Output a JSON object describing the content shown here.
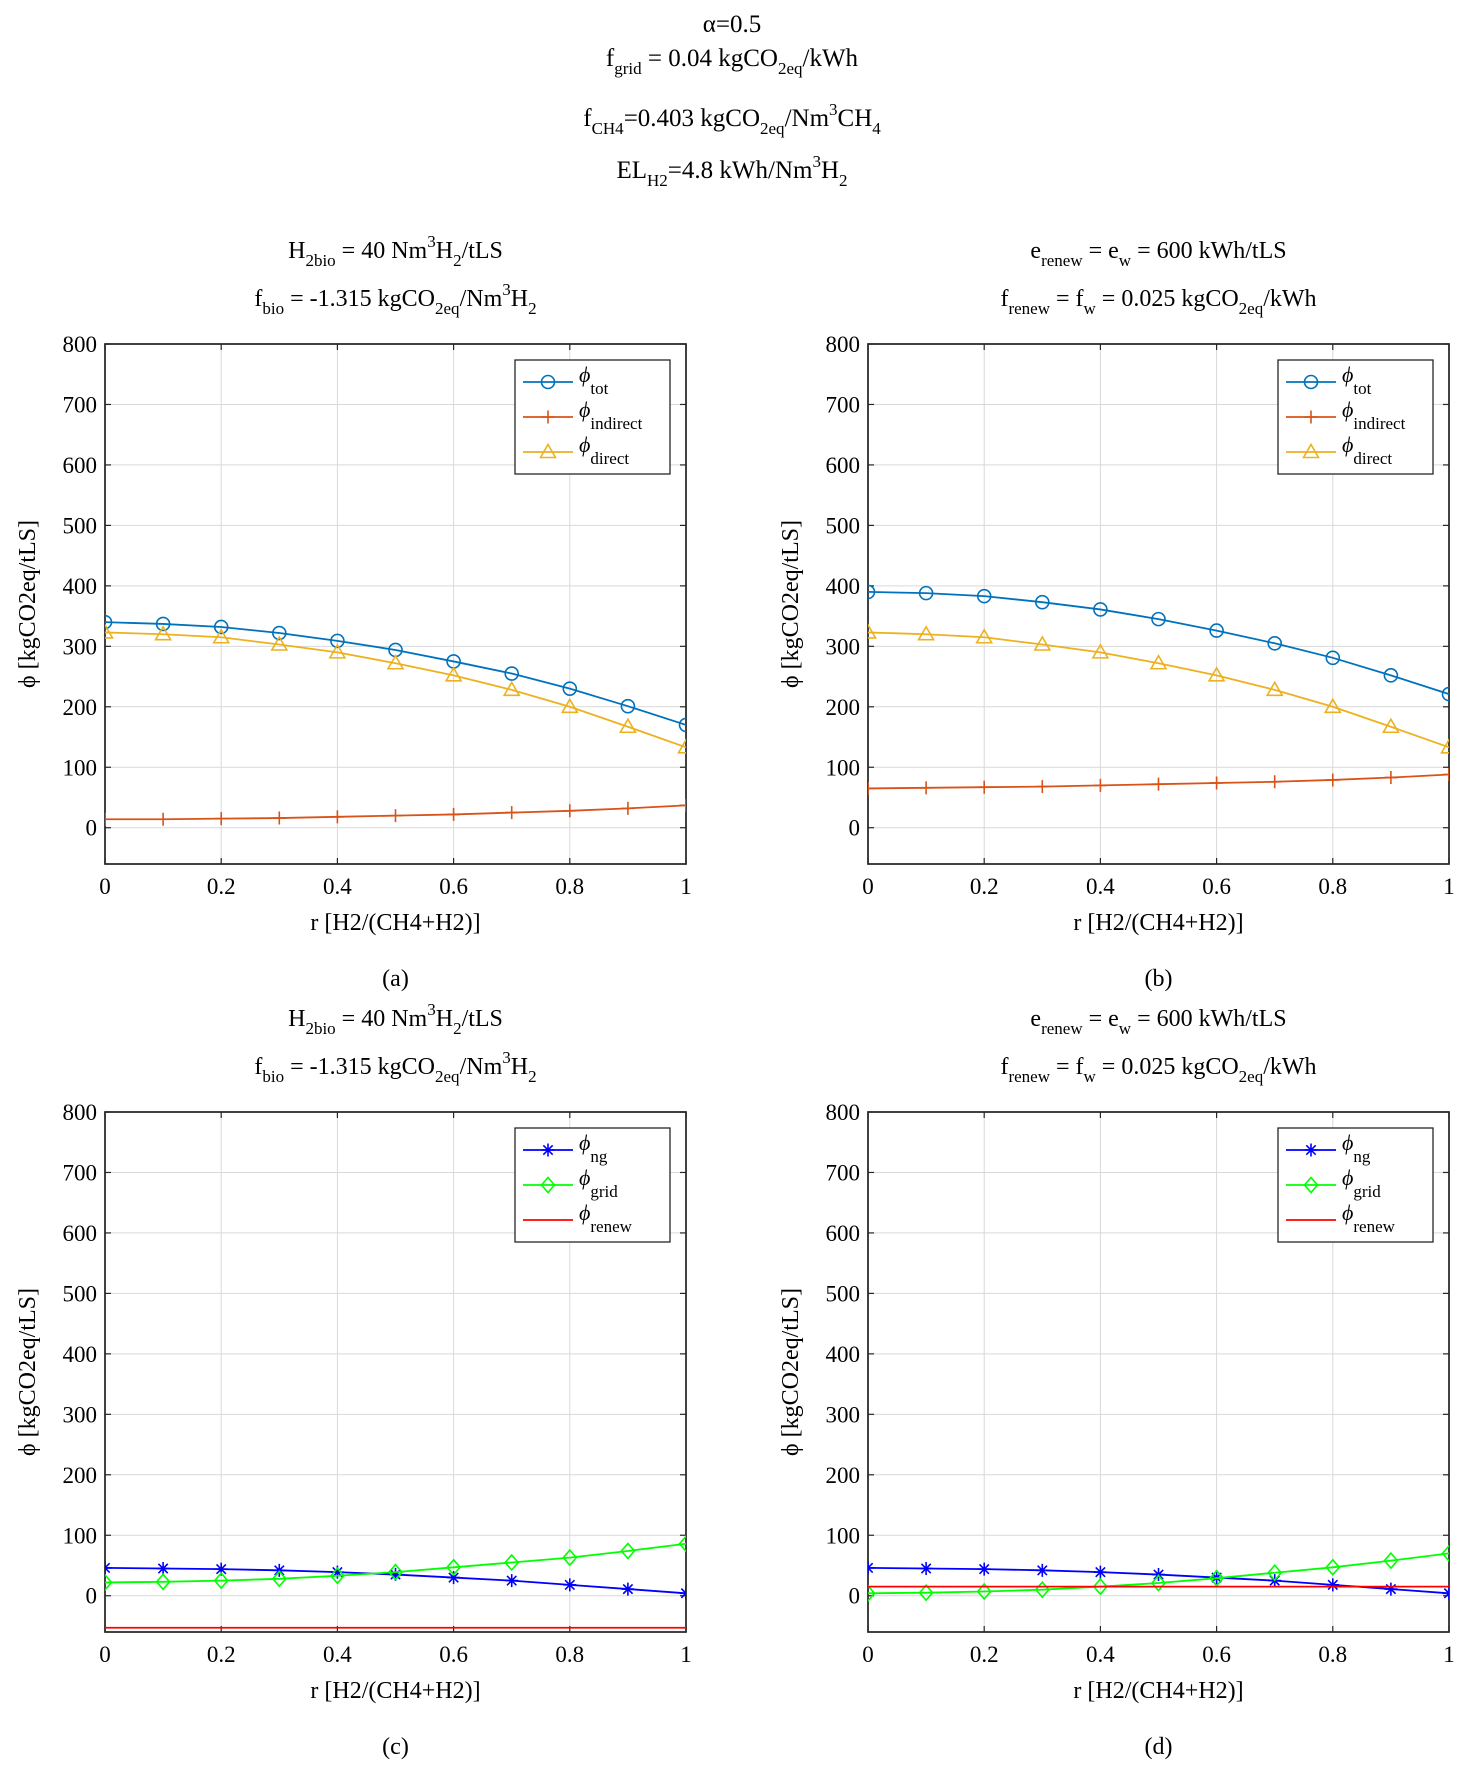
{
  "header": {
    "alpha": "α=0.5",
    "f_grid": {
      "base": "f",
      "sub": "grid",
      "text": " = 0.04 kgCO",
      "sub2": "2eq",
      "tail": "/kWh"
    },
    "f_ch4": {
      "base": "f",
      "sub": "CH4",
      "text": "=0.403 kgCO",
      "sub2": "2eq",
      "tail": "/Nm",
      "sup": "3",
      "tail2": "CH",
      "sub3": "4"
    },
    "el_h2": {
      "base": "EL",
      "sub": "H2",
      "text": "=4.8 kWh/Nm",
      "sup": "3",
      "tail": "H",
      "sub2": "2"
    }
  },
  "colors": {
    "phi_tot": "#0072BD",
    "phi_indirect": "#D95319",
    "phi_direct": "#EDB120",
    "phi_ng": "#0000FF",
    "phi_grid": "#00FF00",
    "phi_renew": "#FF0000"
  },
  "chart_data": [
    {
      "id": "a",
      "type": "line",
      "caption": "(a)",
      "title_lines": [
        {
          "parts": [
            {
              "t": "H"
            },
            {
              "t": "2bio",
              "s": "sub"
            },
            {
              "t": " = 40 Nm"
            },
            {
              "t": "3",
              "s": "sup"
            },
            {
              "t": "H"
            },
            {
              "t": "2",
              "s": "sub"
            },
            {
              "t": "/tLS"
            }
          ]
        },
        {
          "parts": [
            {
              "t": "f"
            },
            {
              "t": "bio",
              "s": "sub"
            },
            {
              "t": " = -1.315 kgCO"
            },
            {
              "t": "2eq",
              "s": "sub"
            },
            {
              "t": "/Nm"
            },
            {
              "t": "3",
              "s": "sup"
            },
            {
              "t": "H"
            },
            {
              "t": "2",
              "s": "sub"
            }
          ]
        }
      ],
      "xlabel": "r [H2/(CH4+H2)]",
      "ylabel": "ϕ [kgCO2eq/tLS]",
      "xlim": [
        0,
        1
      ],
      "ylim": [
        -60,
        800
      ],
      "xticks": [
        0,
        0.2,
        0.4,
        0.6,
        0.8,
        1
      ],
      "xtick_labels": [
        "0",
        "0.2",
        "0.4",
        "0.6",
        "0.8",
        "1"
      ],
      "yticks": [
        0,
        100,
        200,
        300,
        400,
        500,
        600,
        700,
        800
      ],
      "ytick_labels": [
        "0",
        "100",
        "200",
        "300",
        "400",
        "500",
        "600",
        "700",
        "800"
      ],
      "x": [
        0,
        0.1,
        0.2,
        0.3,
        0.4,
        0.5,
        0.6,
        0.7,
        0.8,
        0.9,
        1.0
      ],
      "legend_position": "top-right",
      "series": [
        {
          "key": "phi_tot",
          "name": "ϕ",
          "sub": "tot",
          "marker": "circle",
          "values": [
            340,
            337,
            332,
            322,
            309,
            294,
            275,
            255,
            230,
            201,
            170
          ]
        },
        {
          "key": "phi_indirect",
          "name": "ϕ",
          "sub": "indirect",
          "marker": "plus",
          "values": [
            14,
            14,
            15,
            16,
            18,
            20,
            22,
            25,
            28,
            32,
            37
          ]
        },
        {
          "key": "phi_direct",
          "name": "ϕ",
          "sub": "direct",
          "marker": "triangle",
          "values": [
            323,
            320,
            315,
            303,
            290,
            272,
            252,
            228,
            200,
            167,
            133
          ]
        }
      ]
    },
    {
      "id": "b",
      "type": "line",
      "caption": "(b)",
      "title_lines": [
        {
          "parts": [
            {
              "t": "e"
            },
            {
              "t": "renew",
              "s": "sub"
            },
            {
              "t": " = e"
            },
            {
              "t": "w",
              "s": "sub"
            },
            {
              "t": " = 600 kWh/tLS"
            }
          ]
        },
        {
          "parts": [
            {
              "t": "f"
            },
            {
              "t": "renew",
              "s": "sub"
            },
            {
              "t": " = f"
            },
            {
              "t": "w",
              "s": "sub"
            },
            {
              "t": " = 0.025 kgCO"
            },
            {
              "t": "2eq",
              "s": "sub"
            },
            {
              "t": "/kWh"
            }
          ]
        }
      ],
      "xlabel": "r [H2/(CH4+H2)]",
      "ylabel": "ϕ [kgCO2eq/tLS]",
      "xlim": [
        0,
        1
      ],
      "ylim": [
        -60,
        800
      ],
      "xticks": [
        0,
        0.2,
        0.4,
        0.6,
        0.8,
        1
      ],
      "xtick_labels": [
        "0",
        "0.2",
        "0.4",
        "0.6",
        "0.8",
        "1"
      ],
      "yticks": [
        0,
        100,
        200,
        300,
        400,
        500,
        600,
        700,
        800
      ],
      "ytick_labels": [
        "0",
        "100",
        "200",
        "300",
        "400",
        "500",
        "600",
        "700",
        "800"
      ],
      "x": [
        0,
        0.1,
        0.2,
        0.3,
        0.4,
        0.5,
        0.6,
        0.7,
        0.8,
        0.9,
        1.0
      ],
      "legend_position": "top-right",
      "series": [
        {
          "key": "phi_tot",
          "name": "ϕ",
          "sub": "tot",
          "marker": "circle",
          "values": [
            390,
            388,
            383,
            373,
            361,
            345,
            326,
            305,
            281,
            252,
            221
          ]
        },
        {
          "key": "phi_indirect",
          "name": "ϕ",
          "sub": "indirect",
          "marker": "plus",
          "values": [
            65,
            66,
            67,
            68,
            70,
            72,
            74,
            76,
            79,
            83,
            88
          ]
        },
        {
          "key": "phi_direct",
          "name": "ϕ",
          "sub": "direct",
          "marker": "triangle",
          "values": [
            323,
            320,
            315,
            303,
            290,
            272,
            252,
            228,
            200,
            167,
            133
          ]
        }
      ]
    },
    {
      "id": "c",
      "type": "line",
      "caption": "(c)",
      "title_lines": [
        {
          "parts": [
            {
              "t": "H"
            },
            {
              "t": "2bio",
              "s": "sub"
            },
            {
              "t": " = 40 Nm"
            },
            {
              "t": "3",
              "s": "sup"
            },
            {
              "t": "H"
            },
            {
              "t": "2",
              "s": "sub"
            },
            {
              "t": "/tLS"
            }
          ]
        },
        {
          "parts": [
            {
              "t": "f"
            },
            {
              "t": "bio",
              "s": "sub"
            },
            {
              "t": " = -1.315 kgCO"
            },
            {
              "t": "2eq",
              "s": "sub"
            },
            {
              "t": "/Nm"
            },
            {
              "t": "3",
              "s": "sup"
            },
            {
              "t": "H"
            },
            {
              "t": "2",
              "s": "sub"
            }
          ]
        }
      ],
      "xlabel": "r [H2/(CH4+H2)]",
      "ylabel": "ϕ [kgCO2eq/tLS]",
      "xlim": [
        0,
        1
      ],
      "ylim": [
        -60,
        800
      ],
      "xticks": [
        0,
        0.2,
        0.4,
        0.6,
        0.8,
        1
      ],
      "xtick_labels": [
        "0",
        "0.2",
        "0.4",
        "0.6",
        "0.8",
        "1"
      ],
      "yticks": [
        0,
        100,
        200,
        300,
        400,
        500,
        600,
        700,
        800
      ],
      "ytick_labels": [
        "0",
        "100",
        "200",
        "300",
        "400",
        "500",
        "600",
        "700",
        "800"
      ],
      "x": [
        0,
        0.1,
        0.2,
        0.3,
        0.4,
        0.5,
        0.6,
        0.7,
        0.8,
        0.9,
        1.0
      ],
      "legend_position": "top-right",
      "series": [
        {
          "key": "phi_ng",
          "name": "ϕ",
          "sub": "ng",
          "marker": "star",
          "values": [
            46,
            45,
            44,
            42,
            39,
            35,
            30,
            25,
            18,
            11,
            4
          ]
        },
        {
          "key": "phi_grid",
          "name": "ϕ",
          "sub": "grid",
          "marker": "diamond",
          "values": [
            22,
            23,
            25,
            28,
            33,
            39,
            47,
            55,
            63,
            74,
            86
          ]
        },
        {
          "key": "phi_renew",
          "name": "ϕ",
          "sub": "renew",
          "marker": "none",
          "values": [
            -53,
            -53,
            -53,
            -53,
            -53,
            -53,
            -53,
            -53,
            -53,
            -53,
            -53
          ]
        }
      ]
    },
    {
      "id": "d",
      "type": "line",
      "caption": "(d)",
      "title_lines": [
        {
          "parts": [
            {
              "t": "e"
            },
            {
              "t": "renew",
              "s": "sub"
            },
            {
              "t": " = e"
            },
            {
              "t": "w",
              "s": "sub"
            },
            {
              "t": " = 600 kWh/tLS"
            }
          ]
        },
        {
          "parts": [
            {
              "t": "f"
            },
            {
              "t": "renew",
              "s": "sub"
            },
            {
              "t": " = f"
            },
            {
              "t": "w",
              "s": "sub"
            },
            {
              "t": " = 0.025 kgCO"
            },
            {
              "t": "2eq",
              "s": "sub"
            },
            {
              "t": "/kWh"
            }
          ]
        }
      ],
      "xlabel": "r [H2/(CH4+H2)]",
      "ylabel": "ϕ [kgCO2eq/tLS]",
      "xlim": [
        0,
        1
      ],
      "ylim": [
        -60,
        800
      ],
      "xticks": [
        0,
        0.2,
        0.4,
        0.6,
        0.8,
        1
      ],
      "xtick_labels": [
        "0",
        "0.2",
        "0.4",
        "0.6",
        "0.8",
        "1"
      ],
      "yticks": [
        0,
        100,
        200,
        300,
        400,
        500,
        600,
        700,
        800
      ],
      "ytick_labels": [
        "0",
        "100",
        "200",
        "300",
        "400",
        "500",
        "600",
        "700",
        "800"
      ],
      "x": [
        0,
        0.1,
        0.2,
        0.3,
        0.4,
        0.5,
        0.6,
        0.7,
        0.8,
        0.9,
        1.0
      ],
      "legend_position": "top-right",
      "series": [
        {
          "key": "phi_ng",
          "name": "ϕ",
          "sub": "ng",
          "marker": "star",
          "values": [
            46,
            45,
            44,
            42,
            39,
            35,
            30,
            25,
            18,
            11,
            4
          ]
        },
        {
          "key": "phi_grid",
          "name": "ϕ",
          "sub": "grid",
          "marker": "diamond",
          "values": [
            4,
            5,
            7,
            10,
            15,
            21,
            29,
            38,
            47,
            58,
            70
          ]
        },
        {
          "key": "phi_renew",
          "name": "ϕ",
          "sub": "renew",
          "marker": "none",
          "values": [
            15,
            15,
            15,
            15,
            15,
            15,
            15,
            15,
            15,
            15,
            15
          ]
        }
      ]
    }
  ]
}
